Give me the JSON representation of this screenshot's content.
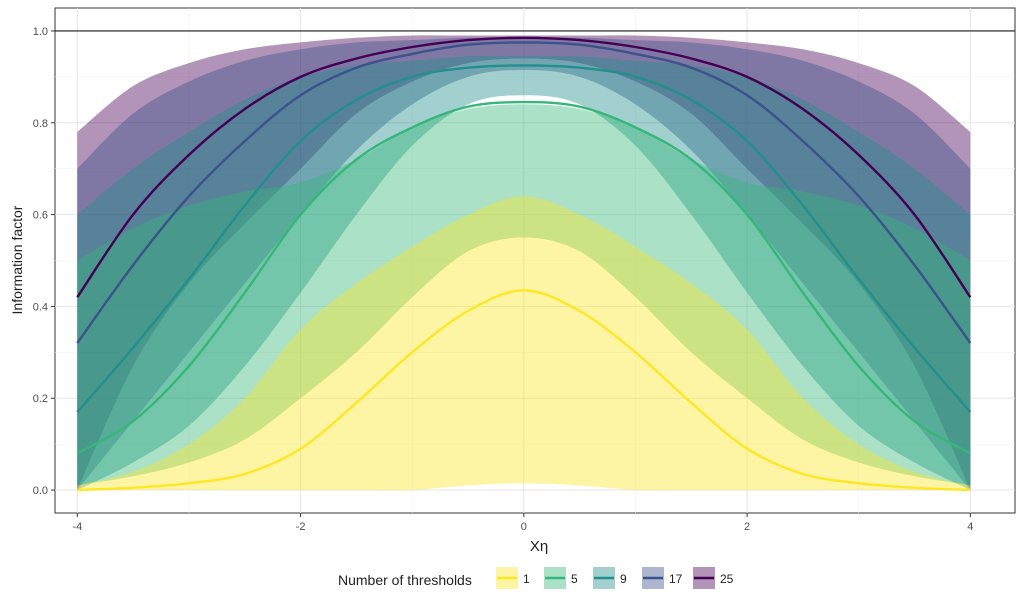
{
  "chart_data": {
    "type": "line",
    "title": "",
    "xlabel": "Xη",
    "ylabel": "Information factor",
    "xlim": [
      -4.2,
      4.4
    ],
    "ylim": [
      -0.05,
      1.05
    ],
    "xticks": [
      -4,
      -2,
      0,
      2,
      4
    ],
    "yticks": [
      0.0,
      0.2,
      0.4,
      0.6,
      0.8,
      1.0
    ],
    "xtick_labels": [
      "-4",
      "-2",
      "0",
      "2",
      "4"
    ],
    "ytick_labels": [
      "0.0",
      "0.2",
      "0.4",
      "0.6",
      "0.8",
      "1.0"
    ],
    "grid": true,
    "reference_line_y": 1.0,
    "legend": {
      "title": "Number of thresholds",
      "position": "bottom"
    },
    "x": [
      -4,
      -3.5,
      -3,
      -2.5,
      -2,
      -1.5,
      -1,
      -0.5,
      0,
      0.5,
      1,
      1.5,
      2,
      2.5,
      3,
      3.5,
      4
    ],
    "series": [
      {
        "name": "25",
        "color": "#440154",
        "values": [
          0.42,
          0.6,
          0.73,
          0.83,
          0.9,
          0.94,
          0.965,
          0.98,
          0.985,
          0.98,
          0.965,
          0.94,
          0.9,
          0.83,
          0.73,
          0.6,
          0.42
        ],
        "lower": [
          0.0,
          0.27,
          0.45,
          0.58,
          0.7,
          0.82,
          0.89,
          0.93,
          0.94,
          0.93,
          0.89,
          0.82,
          0.7,
          0.58,
          0.45,
          0.27,
          0.0
        ],
        "upper": [
          0.78,
          0.88,
          0.93,
          0.96,
          0.975,
          0.985,
          0.99,
          0.99,
          0.99,
          0.99,
          0.99,
          0.985,
          0.975,
          0.96,
          0.93,
          0.88,
          0.78
        ]
      },
      {
        "name": "17",
        "color": "#3b528b",
        "values": [
          0.32,
          0.49,
          0.64,
          0.76,
          0.86,
          0.92,
          0.95,
          0.97,
          0.975,
          0.97,
          0.95,
          0.92,
          0.86,
          0.76,
          0.64,
          0.49,
          0.32
        ],
        "lower": [
          0.0,
          0.15,
          0.3,
          0.45,
          0.6,
          0.74,
          0.84,
          0.9,
          0.915,
          0.9,
          0.84,
          0.74,
          0.6,
          0.45,
          0.3,
          0.15,
          0.0
        ],
        "upper": [
          0.7,
          0.82,
          0.89,
          0.935,
          0.96,
          0.975,
          0.98,
          0.985,
          0.985,
          0.985,
          0.98,
          0.975,
          0.96,
          0.935,
          0.89,
          0.82,
          0.7
        ]
      },
      {
        "name": "9",
        "color": "#21908c",
        "values": [
          0.17,
          0.31,
          0.46,
          0.62,
          0.76,
          0.85,
          0.9,
          0.92,
          0.925,
          0.92,
          0.9,
          0.85,
          0.76,
          0.62,
          0.46,
          0.31,
          0.17
        ],
        "lower": [
          0.0,
          0.06,
          0.14,
          0.27,
          0.43,
          0.6,
          0.75,
          0.84,
          0.86,
          0.84,
          0.75,
          0.6,
          0.43,
          0.27,
          0.14,
          0.06,
          0.0
        ],
        "upper": [
          0.6,
          0.7,
          0.78,
          0.85,
          0.9,
          0.925,
          0.935,
          0.945,
          0.945,
          0.945,
          0.935,
          0.925,
          0.9,
          0.85,
          0.78,
          0.7,
          0.6
        ]
      },
      {
        "name": "5",
        "color": "#35b779",
        "values": [
          0.08,
          0.15,
          0.27,
          0.43,
          0.6,
          0.72,
          0.79,
          0.835,
          0.845,
          0.835,
          0.79,
          0.72,
          0.6,
          0.43,
          0.27,
          0.15,
          0.08
        ],
        "lower": [
          0.01,
          0.03,
          0.06,
          0.11,
          0.2,
          0.3,
          0.42,
          0.52,
          0.55,
          0.52,
          0.42,
          0.3,
          0.2,
          0.11,
          0.06,
          0.03,
          0.01
        ],
        "upper": [
          0.5,
          0.57,
          0.62,
          0.65,
          0.67,
          0.72,
          0.79,
          0.83,
          0.84,
          0.83,
          0.79,
          0.72,
          0.67,
          0.65,
          0.62,
          0.57,
          0.5
        ]
      },
      {
        "name": "1",
        "color": "#fde725",
        "values": [
          0.0,
          0.005,
          0.015,
          0.035,
          0.09,
          0.19,
          0.3,
          0.39,
          0.435,
          0.39,
          0.3,
          0.19,
          0.09,
          0.035,
          0.015,
          0.005,
          0.0
        ],
        "lower": [
          0.0,
          0.0,
          0.0,
          0.0,
          0.0,
          0.0,
          0.0,
          0.01,
          0.015,
          0.01,
          0.0,
          0.0,
          0.0,
          0.0,
          0.0,
          0.0,
          0.0
        ],
        "upper": [
          0.01,
          0.04,
          0.1,
          0.2,
          0.35,
          0.45,
          0.53,
          0.6,
          0.64,
          0.6,
          0.53,
          0.45,
          0.35,
          0.2,
          0.1,
          0.04,
          0.01
        ]
      }
    ],
    "legend_order": [
      "1",
      "5",
      "9",
      "17",
      "25"
    ]
  }
}
